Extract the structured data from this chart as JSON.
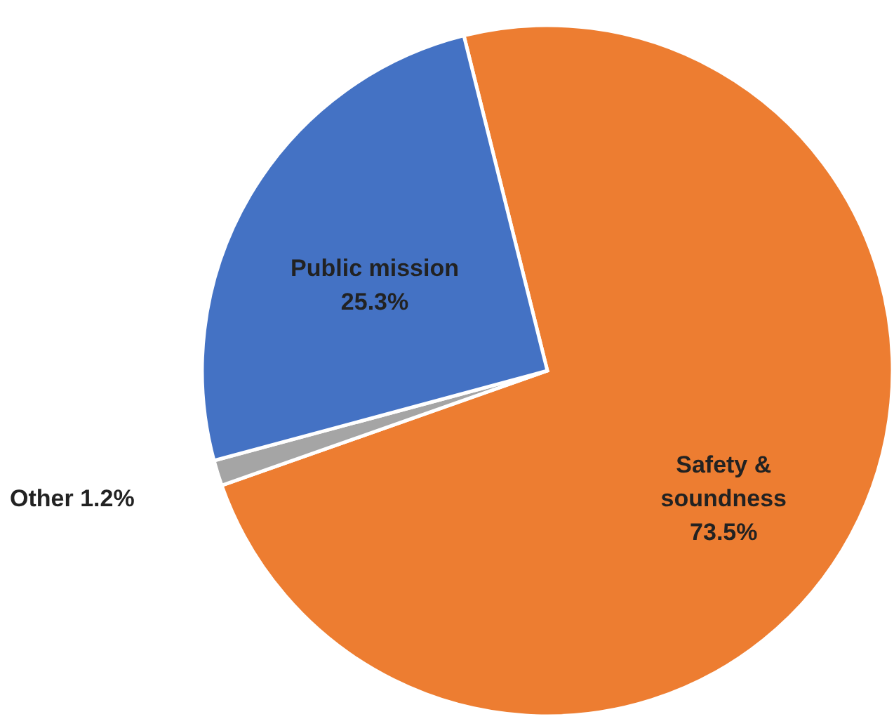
{
  "chart_data": {
    "type": "pie",
    "categories": [
      "Safety & soundness",
      "Other",
      "Public mission"
    ],
    "values": [
      73.5,
      1.2,
      25.3
    ],
    "value_labels": [
      "73.5%",
      "1.2%",
      "25.3%"
    ],
    "colors": [
      "#ed7d31",
      "#a5a5a5",
      "#4472c4"
    ]
  }
}
